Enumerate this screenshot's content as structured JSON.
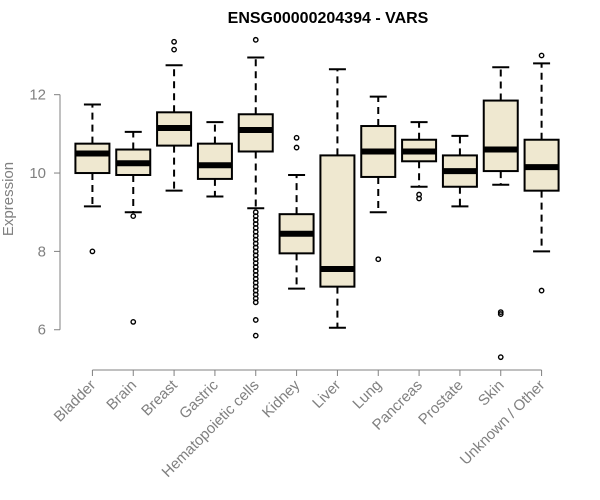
{
  "chart_data": {
    "type": "boxplot",
    "title": "ENSG00000204394 - VARS",
    "xlabel": "",
    "ylabel": "Expression",
    "ylim": [
      5.1,
      13.6
    ],
    "yticks": [
      6,
      8,
      10,
      12
    ],
    "grid": false,
    "legend": "none",
    "box_fill": "#efe8d0",
    "categories": [
      "Bladder",
      "Brain",
      "Breast",
      "Gastric",
      "Hematopoietic cells",
      "Kidney",
      "Liver",
      "Lung",
      "Pancreas",
      "Prostate",
      "Skin",
      "Unknown / Other"
    ],
    "boxes": [
      {
        "category": "Bladder",
        "min": 9.15,
        "q1": 10.0,
        "median": 10.5,
        "q3": 10.75,
        "max": 11.75,
        "outliers": [
          8.0
        ]
      },
      {
        "category": "Brain",
        "min": 9.0,
        "q1": 9.95,
        "median": 10.25,
        "q3": 10.6,
        "max": 11.05,
        "outliers": [
          8.9,
          6.2
        ]
      },
      {
        "category": "Breast",
        "min": 9.55,
        "q1": 10.7,
        "median": 11.15,
        "q3": 11.55,
        "max": 12.75,
        "outliers": [
          13.15,
          13.35
        ]
      },
      {
        "category": "Gastric",
        "min": 9.4,
        "q1": 9.85,
        "median": 10.2,
        "q3": 10.75,
        "max": 11.3,
        "outliers": []
      },
      {
        "category": "Hematopoietic cells",
        "min": 9.1,
        "q1": 10.55,
        "median": 11.1,
        "q3": 11.5,
        "max": 12.95,
        "outliers": [
          13.4,
          9.0,
          8.9,
          8.8,
          8.7,
          8.6,
          8.5,
          8.4,
          8.3,
          8.2,
          8.1,
          8.0,
          7.9,
          7.8,
          7.7,
          7.6,
          7.5,
          7.4,
          7.3,
          7.2,
          7.1,
          7.0,
          6.9,
          6.8,
          6.7,
          6.25,
          5.85
        ]
      },
      {
        "category": "Kidney",
        "min": 7.05,
        "q1": 7.95,
        "median": 8.45,
        "q3": 8.95,
        "max": 9.95,
        "outliers": [
          10.65,
          10.9
        ]
      },
      {
        "category": "Liver",
        "min": 6.05,
        "q1": 7.1,
        "median": 7.55,
        "q3": 10.45,
        "max": 12.65,
        "outliers": []
      },
      {
        "category": "Lung",
        "min": 9.0,
        "q1": 9.9,
        "median": 10.55,
        "q3": 11.2,
        "max": 11.95,
        "outliers": [
          7.8
        ]
      },
      {
        "category": "Pancreas",
        "min": 9.65,
        "q1": 10.3,
        "median": 10.55,
        "q3": 10.85,
        "max": 11.3,
        "outliers": [
          9.45,
          9.35
        ]
      },
      {
        "category": "Prostate",
        "min": 9.15,
        "q1": 9.65,
        "median": 10.05,
        "q3": 10.45,
        "max": 10.95,
        "outliers": []
      },
      {
        "category": "Skin",
        "min": 9.7,
        "q1": 10.05,
        "median": 10.6,
        "q3": 11.85,
        "max": 12.7,
        "outliers": [
          6.45,
          6.4,
          5.3
        ]
      },
      {
        "category": "Unknown / Other",
        "min": 8.0,
        "q1": 9.55,
        "median": 10.15,
        "q3": 10.85,
        "max": 12.8,
        "outliers": [
          13.0,
          7.0
        ]
      }
    ]
  }
}
